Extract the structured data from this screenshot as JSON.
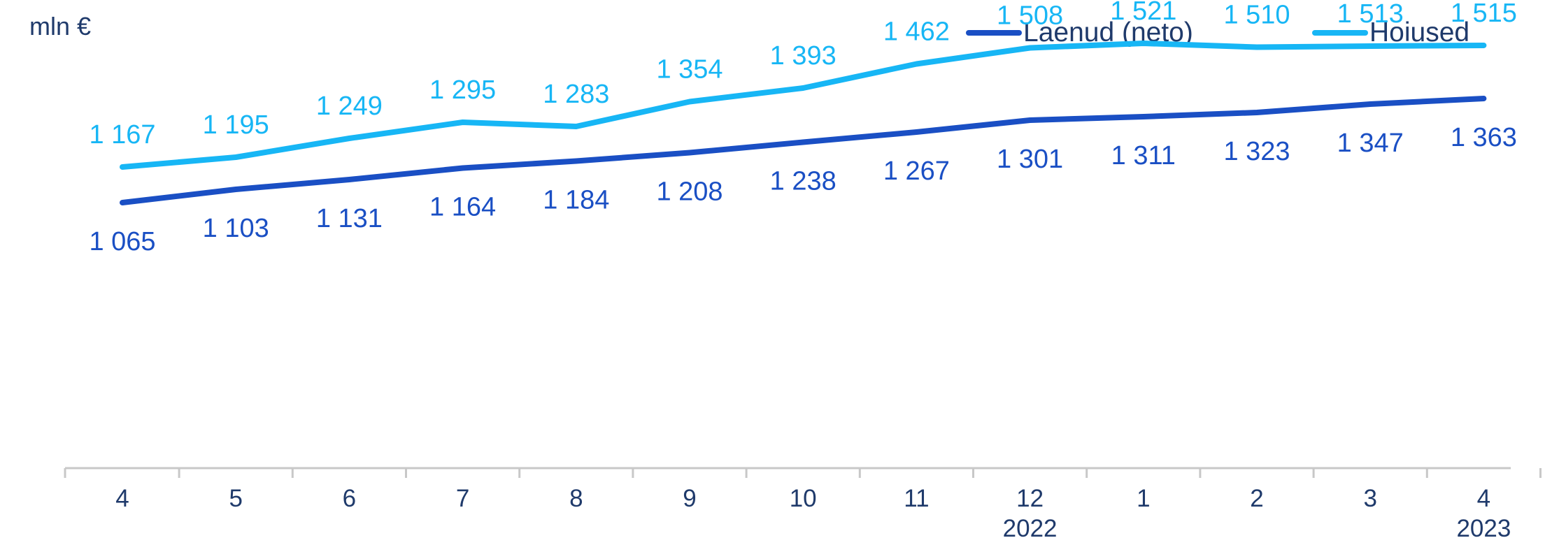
{
  "chart_data": {
    "type": "line",
    "unit_label": "mln €",
    "categories": [
      "4",
      "5",
      "6",
      "7",
      "8",
      "9",
      "10",
      "11",
      "12",
      "1",
      "2",
      "3",
      "4"
    ],
    "year_labels": [
      {
        "index": 8,
        "text": "2022"
      },
      {
        "index": 12,
        "text": "2023"
      }
    ],
    "series": [
      {
        "name": "Laenud (neto)",
        "color": "#1a4fc4",
        "values": [
          1065,
          1103,
          1131,
          1164,
          1184,
          1208,
          1238,
          1267,
          1301,
          1311,
          1323,
          1347,
          1363
        ],
        "labels": [
          "1 065",
          "1 103",
          "1 131",
          "1 164",
          "1 184",
          "1 208",
          "1 238",
          "1 267",
          "1 301",
          "1 311",
          "1 323",
          "1 347",
          "1 363"
        ],
        "label_position": "below"
      },
      {
        "name": "Hoiused",
        "color": "#17b6f5",
        "values": [
          1167,
          1195,
          1249,
          1295,
          1283,
          1354,
          1393,
          1462,
          1508,
          1521,
          1510,
          1513,
          1515
        ],
        "labels": [
          "1 167",
          "1 195",
          "1 249",
          "1 295",
          "1 283",
          "1 354",
          "1 393",
          "1 462",
          "1 508",
          "1 521",
          "1 510",
          "1 513",
          "1 515"
        ],
        "label_position": "above"
      }
    ],
    "grid": false,
    "legend_position": "top-right",
    "axis_color": "#c8c8c8",
    "text_color": "#1f3a6b"
  }
}
